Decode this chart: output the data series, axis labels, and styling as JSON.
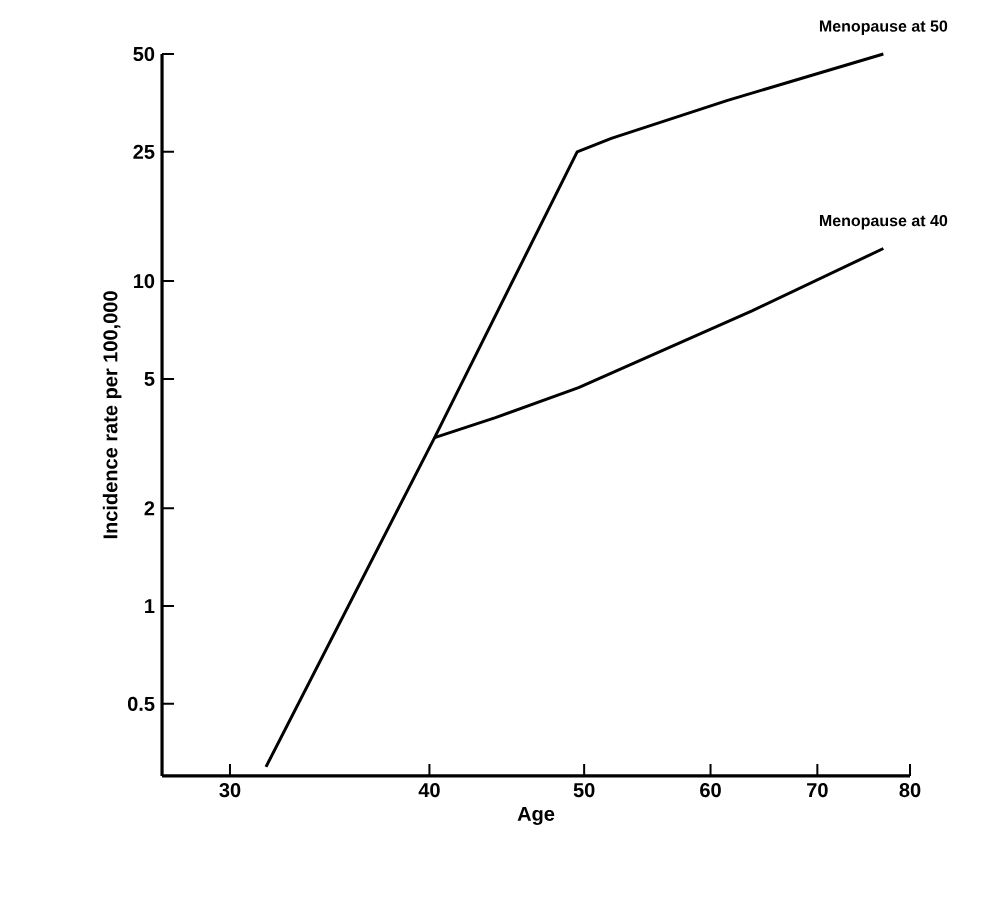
{
  "chart_data": {
    "type": "line",
    "xlabel": "Age",
    "ylabel": "Incidence rate per 100,000",
    "log": "xy",
    "xlim": [
      27.2,
      80
    ],
    "ylim": [
      0.3,
      50
    ],
    "xticks": [
      30,
      40,
      50,
      60,
      70,
      80
    ],
    "yticks": [
      0.5,
      1,
      2,
      5,
      10,
      25,
      50
    ],
    "grid": false,
    "legend": false,
    "marker": "none",
    "line_style": "solid",
    "series": [
      {
        "name": "Menopause at 50",
        "color": "#000000",
        "x": [
          31.6,
          40.3,
          49.5,
          52,
          61.5,
          77
        ],
        "values": [
          0.32,
          3.3,
          25,
          27.5,
          36,
          50
        ]
      },
      {
        "name": "Menopause at 40",
        "color": "#000000",
        "x": [
          40.3,
          44,
          49.6,
          63.7,
          77
        ],
        "values": [
          3.3,
          3.8,
          4.7,
          8.1,
          12.6
        ]
      }
    ]
  }
}
